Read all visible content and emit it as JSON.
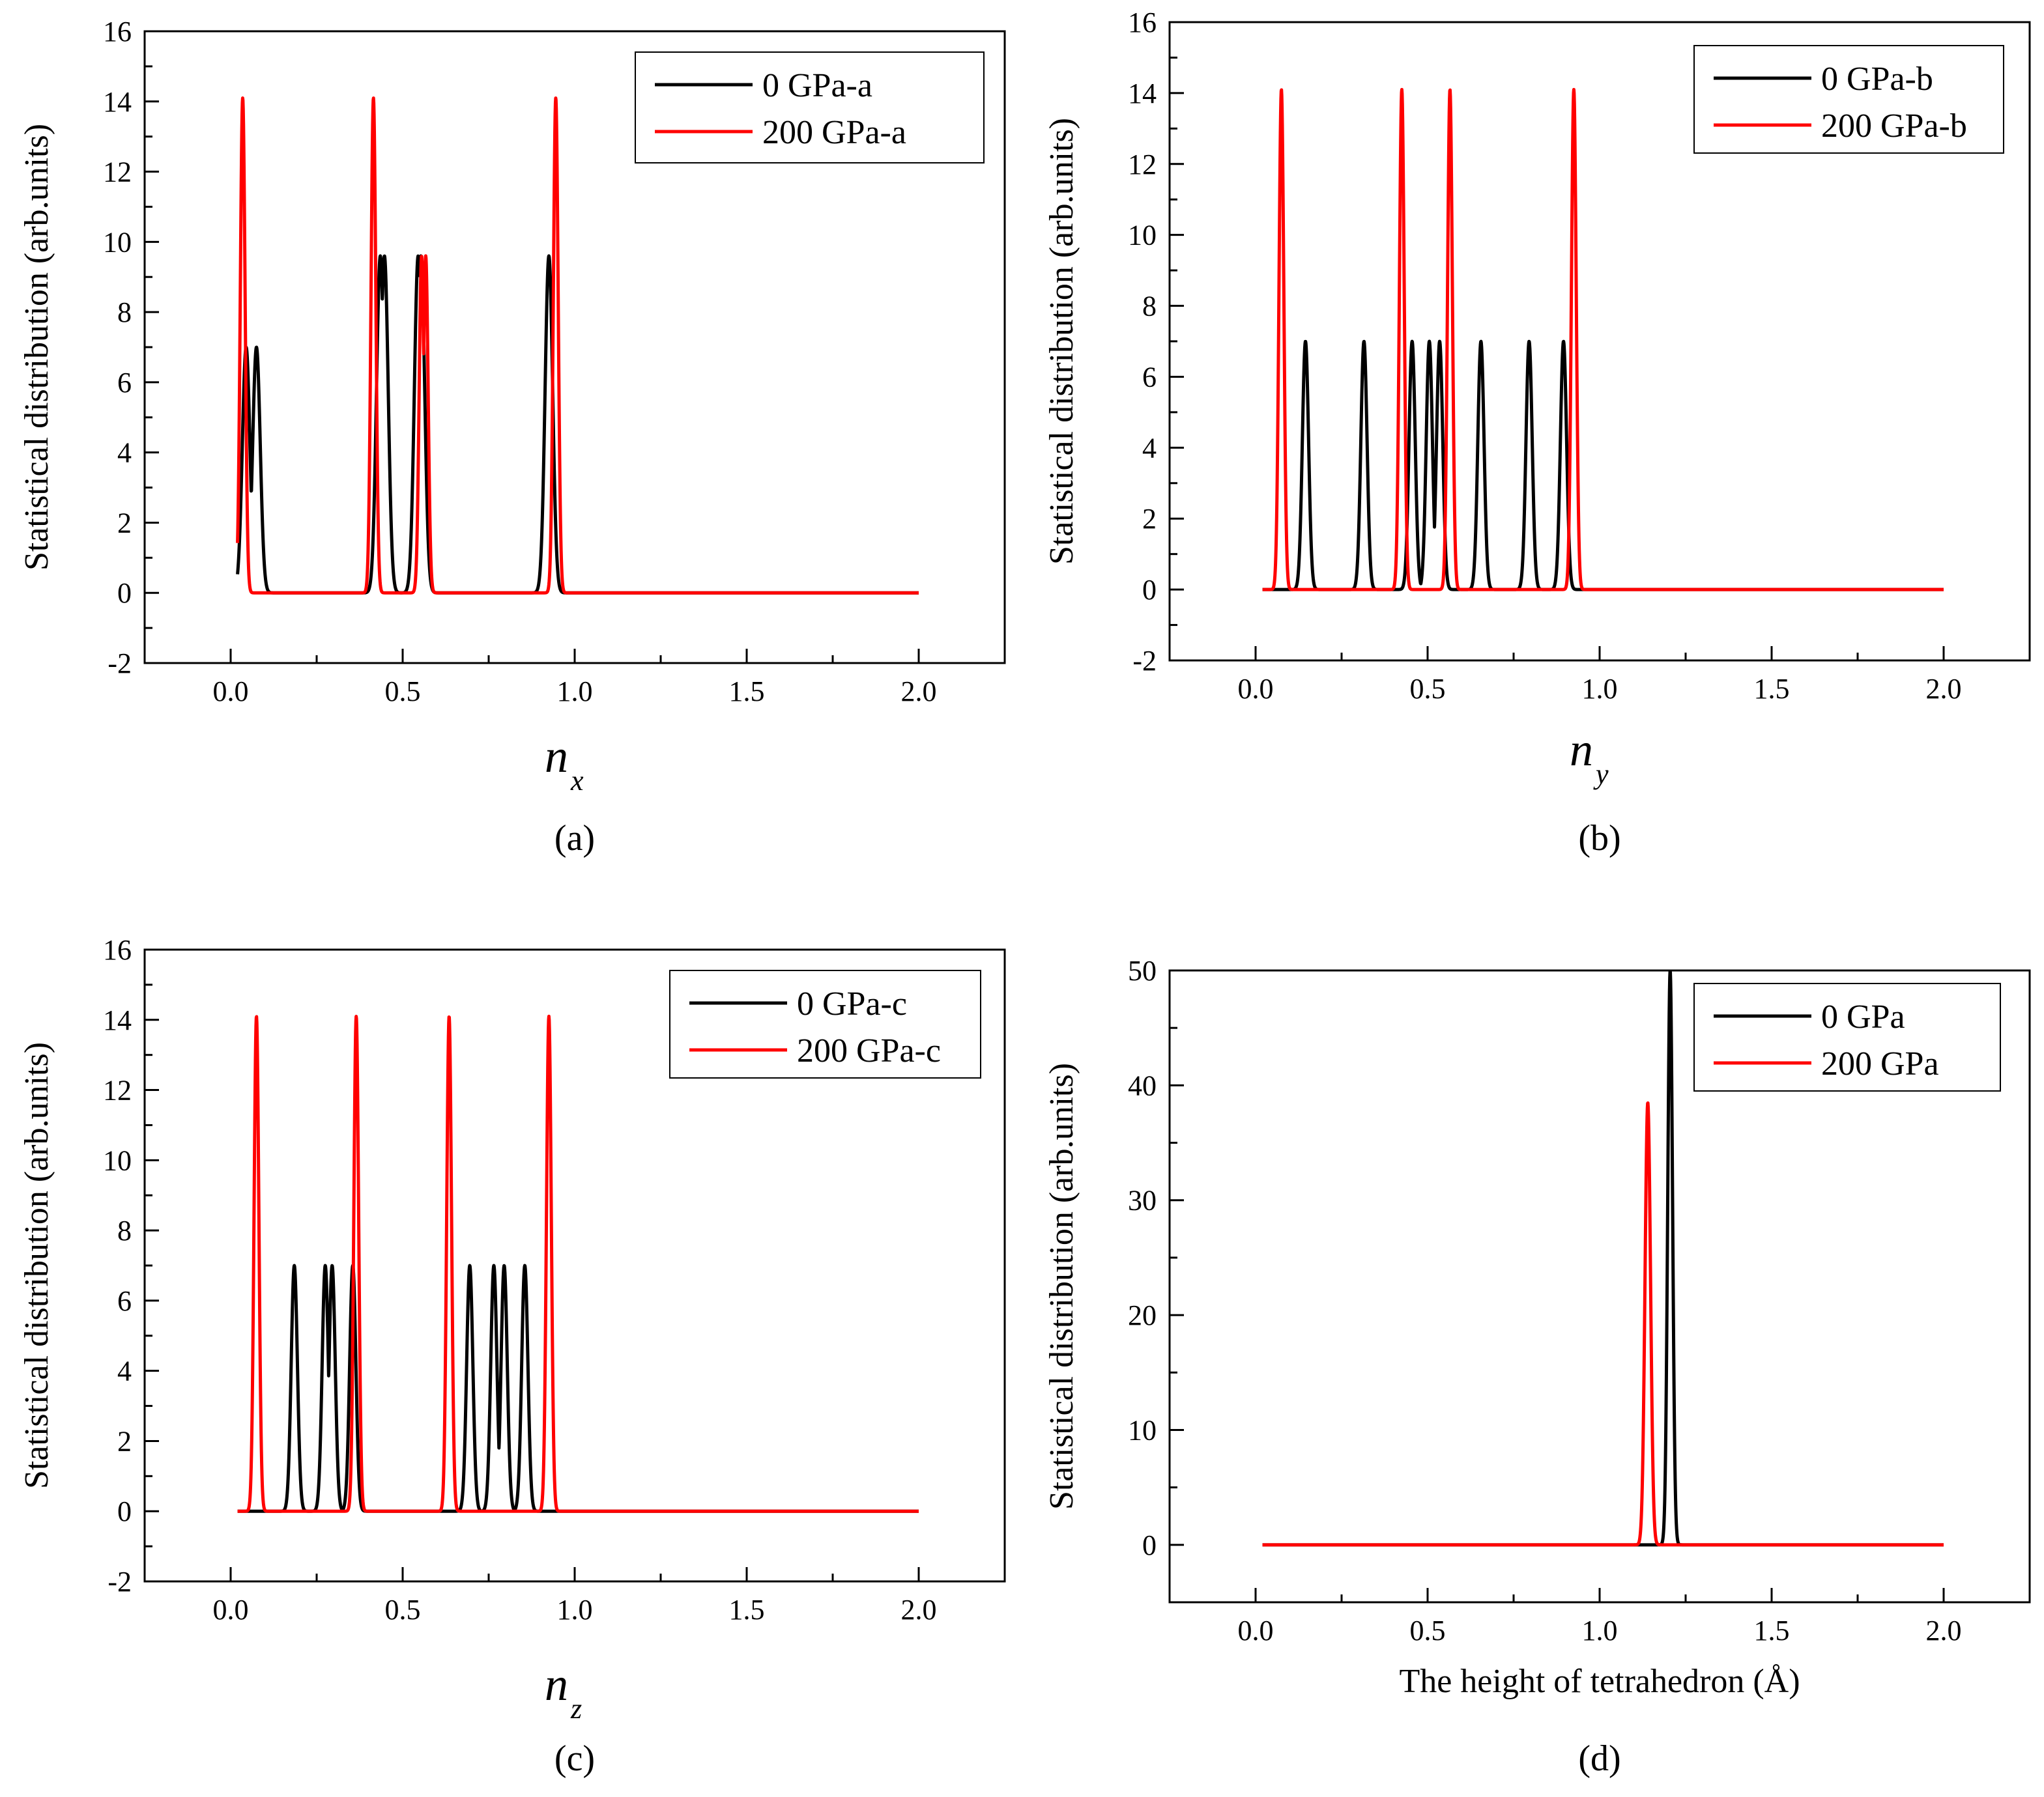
{
  "figure": {
    "colors": {
      "series_0": "#000000",
      "series_200": "#ff0000",
      "axis": "#000000"
    },
    "y_axis_label": "Statistical distribution (arb.units)"
  },
  "chart_data": [
    {
      "id": "a",
      "type": "line",
      "panel_label": "(a)",
      "xlabel_main": "n",
      "xlabel_sub": "x",
      "ylabel": "Statistical distribution (arb.units)",
      "xlim": [
        -0.25,
        2.25
      ],
      "ylim": [
        -2,
        16
      ],
      "xticks": [
        0.0,
        0.5,
        1.0,
        1.5,
        2.0
      ],
      "xtick_labels": [
        "0.0",
        "0.5",
        "1.0",
        "1.5",
        "2.0"
      ],
      "yticks": [
        -2,
        0,
        2,
        4,
        6,
        8,
        10,
        12,
        14,
        16
      ],
      "ytick_labels": [
        "-2",
        "0",
        "2",
        "4",
        "6",
        "8",
        "10",
        "12",
        "14",
        "16"
      ],
      "x_range": [
        0.02,
        2.0
      ],
      "series": [
        {
          "name": "0 GPa-a",
          "color": "#000000",
          "peak_width": 0.011,
          "peaks": [
            [
              0.045,
              7.0
            ],
            [
              0.075,
              7.0
            ],
            [
              0.435,
              9.6
            ],
            [
              0.447,
              9.6
            ],
            [
              0.545,
              9.6
            ],
            [
              0.553,
              9.6
            ],
            [
              0.925,
              9.6
            ]
          ]
        },
        {
          "name": "200 GPa-a",
          "color": "#ff0000",
          "peak_width": 0.007,
          "peaks": [
            [
              0.035,
              14.1
            ],
            [
              0.415,
              14.1
            ],
            [
              0.555,
              9.6
            ],
            [
              0.567,
              9.6
            ],
            [
              0.945,
              14.1
            ]
          ]
        }
      ]
    },
    {
      "id": "b",
      "type": "line",
      "panel_label": "(b)",
      "xlabel_main": "n",
      "xlabel_sub": "y",
      "ylabel": "Statistical distribution (arb.units)",
      "xlim": [
        -0.25,
        2.25
      ],
      "ylim": [
        -2,
        16
      ],
      "xticks": [
        0.0,
        0.5,
        1.0,
        1.5,
        2.0
      ],
      "xtick_labels": [
        "0.0",
        "0.5",
        "1.0",
        "1.5",
        "2.0"
      ],
      "yticks": [
        -2,
        0,
        2,
        4,
        6,
        8,
        10,
        12,
        14,
        16
      ],
      "ytick_labels": [
        "-2",
        "0",
        "2",
        "4",
        "6",
        "8",
        "10",
        "12",
        "14",
        "16"
      ],
      "x_range": [
        0.02,
        2.0
      ],
      "series": [
        {
          "name": "0 GPa-b",
          "color": "#000000",
          "peak_width": 0.009,
          "peaks": [
            [
              0.145,
              7.0
            ],
            [
              0.315,
              7.0
            ],
            [
              0.455,
              7.0
            ],
            [
              0.505,
              7.0
            ],
            [
              0.535,
              7.0
            ],
            [
              0.655,
              7.0
            ],
            [
              0.795,
              7.0
            ],
            [
              0.895,
              7.0
            ]
          ]
        },
        {
          "name": "200 GPa-b",
          "color": "#ff0000",
          "peak_width": 0.007,
          "peaks": [
            [
              0.075,
              14.1
            ],
            [
              0.425,
              14.1
            ],
            [
              0.565,
              14.1
            ],
            [
              0.925,
              14.1
            ]
          ]
        }
      ]
    },
    {
      "id": "c",
      "type": "line",
      "panel_label": "(c)",
      "xlabel_main": "n",
      "xlabel_sub": "z",
      "ylabel": "Statistical distribution (arb.units)",
      "xlim": [
        -0.25,
        2.25
      ],
      "ylim": [
        -2,
        16
      ],
      "xticks": [
        0.0,
        0.5,
        1.0,
        1.5,
        2.0
      ],
      "xtick_labels": [
        "0.0",
        "0.5",
        "1.0",
        "1.5",
        "2.0"
      ],
      "yticks": [
        -2,
        0,
        2,
        4,
        6,
        8,
        10,
        12,
        14,
        16
      ],
      "ytick_labels": [
        "-2",
        "0",
        "2",
        "4",
        "6",
        "8",
        "10",
        "12",
        "14",
        "16"
      ],
      "x_range": [
        0.02,
        2.0
      ],
      "series": [
        {
          "name": "0 GPa-c",
          "color": "#000000",
          "peak_width": 0.009,
          "peaks": [
            [
              0.185,
              7.0
            ],
            [
              0.275,
              7.0
            ],
            [
              0.295,
              7.0
            ],
            [
              0.355,
              7.0
            ],
            [
              0.695,
              7.0
            ],
            [
              0.765,
              7.0
            ],
            [
              0.795,
              7.0
            ],
            [
              0.855,
              7.0
            ]
          ]
        },
        {
          "name": "200 GPa-c",
          "color": "#ff0000",
          "peak_width": 0.007,
          "peaks": [
            [
              0.075,
              14.1
            ],
            [
              0.365,
              14.1
            ],
            [
              0.635,
              14.1
            ],
            [
              0.925,
              14.1
            ]
          ]
        }
      ]
    },
    {
      "id": "d",
      "type": "line",
      "panel_label": "(d)",
      "xlabel_main": "The height of tetrahedron (Å)",
      "xlabel_sub": "",
      "ylabel": "Statistical distribution (arb.units)",
      "xlim": [
        -0.25,
        2.25
      ],
      "ylim": [
        -5,
        50
      ],
      "xticks": [
        0.0,
        0.5,
        1.0,
        1.5,
        2.0
      ],
      "xtick_labels": [
        "0.0",
        "0.5",
        "1.0",
        "1.5",
        "2.0"
      ],
      "yticks": [
        0,
        10,
        20,
        30,
        40,
        50
      ],
      "ytick_labels": [
        "0",
        "10",
        "20",
        "30",
        "40",
        "50"
      ],
      "x_range": [
        0.02,
        2.0
      ],
      "series": [
        {
          "name": "0 GPa",
          "color": "#000000",
          "peak_width": 0.007,
          "peaks": [
            [
              1.205,
              50.0
            ]
          ]
        },
        {
          "name": "200 GPa",
          "color": "#ff0000",
          "peak_width": 0.008,
          "peaks": [
            [
              1.14,
              38.5
            ]
          ]
        }
      ]
    }
  ]
}
